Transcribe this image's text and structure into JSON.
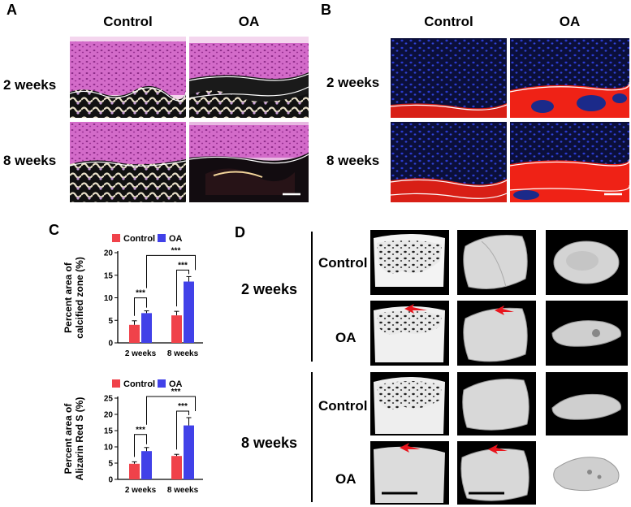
{
  "panel_a": {
    "label": "A",
    "col_headers": [
      "Control",
      "OA"
    ],
    "row_labels": [
      "2 weeks",
      "8 weeks"
    ],
    "image_semantics": [
      "he-control-2wk",
      "he-oa-2wk",
      "he-control-8wk",
      "he-oa-8wk"
    ]
  },
  "panel_b": {
    "label": "B",
    "col_headers": [
      "Control",
      "OA"
    ],
    "row_labels": [
      "2 weeks",
      "8 weeks"
    ],
    "image_semantics": [
      "ars-control-2wk",
      "ars-oa-2wk",
      "ars-control-8wk",
      "ars-oa-8wk"
    ]
  },
  "panel_c": {
    "label": "C",
    "legend": [
      "Control",
      "OA"
    ]
  },
  "panel_d": {
    "label": "D",
    "time_labels": [
      "2 weeks",
      "8 weeks"
    ],
    "group_labels": [
      "Control",
      "OA",
      "Control",
      "OA"
    ]
  },
  "colors": {
    "control": "#f0424a",
    "oa": "#4141e8",
    "he_pink": "#c85dbd",
    "ars_red": "#ef2216",
    "dapi_blue": "#1c2a9a",
    "arrow": "#e8141c"
  },
  "chart_data": [
    {
      "type": "bar",
      "title": "",
      "xlabel": "",
      "ylabel": "Percent area of calcified zone (%)",
      "ylabel_lines": [
        "Percent area of",
        "calcified zone (%)"
      ],
      "categories": [
        "2 weeks",
        "8 weeks"
      ],
      "series": [
        {
          "name": "Control",
          "values": [
            4.0,
            6.1
          ],
          "errors": [
            0.9,
            0.9
          ]
        },
        {
          "name": "OA",
          "values": [
            6.6,
            13.6
          ],
          "errors": [
            0.5,
            1.1
          ]
        }
      ],
      "ylim": [
        0,
        20
      ],
      "yticks": [
        "0",
        "5",
        "10",
        "15",
        "20"
      ],
      "significance": [
        "***",
        "***",
        "***"
      ]
    },
    {
      "type": "bar",
      "title": "",
      "xlabel": "",
      "ylabel": "Percent area of Alizarin Red S (%)",
      "ylabel_lines": [
        "Percent area of",
        "Alizarin Red S (%)"
      ],
      "categories": [
        "2 weeks",
        "8 weeks"
      ],
      "series": [
        {
          "name": "Control",
          "values": [
            4.8,
            7.2
          ],
          "errors": [
            0.6,
            0.5
          ]
        },
        {
          "name": "OA",
          "values": [
            8.7,
            16.6
          ],
          "errors": [
            1.1,
            2.4
          ]
        }
      ],
      "ylim": [
        0,
        25
      ],
      "yticks": [
        "0",
        "5",
        "10",
        "15",
        "20",
        "25"
      ],
      "significance": [
        "***",
        "***",
        "***"
      ]
    }
  ]
}
